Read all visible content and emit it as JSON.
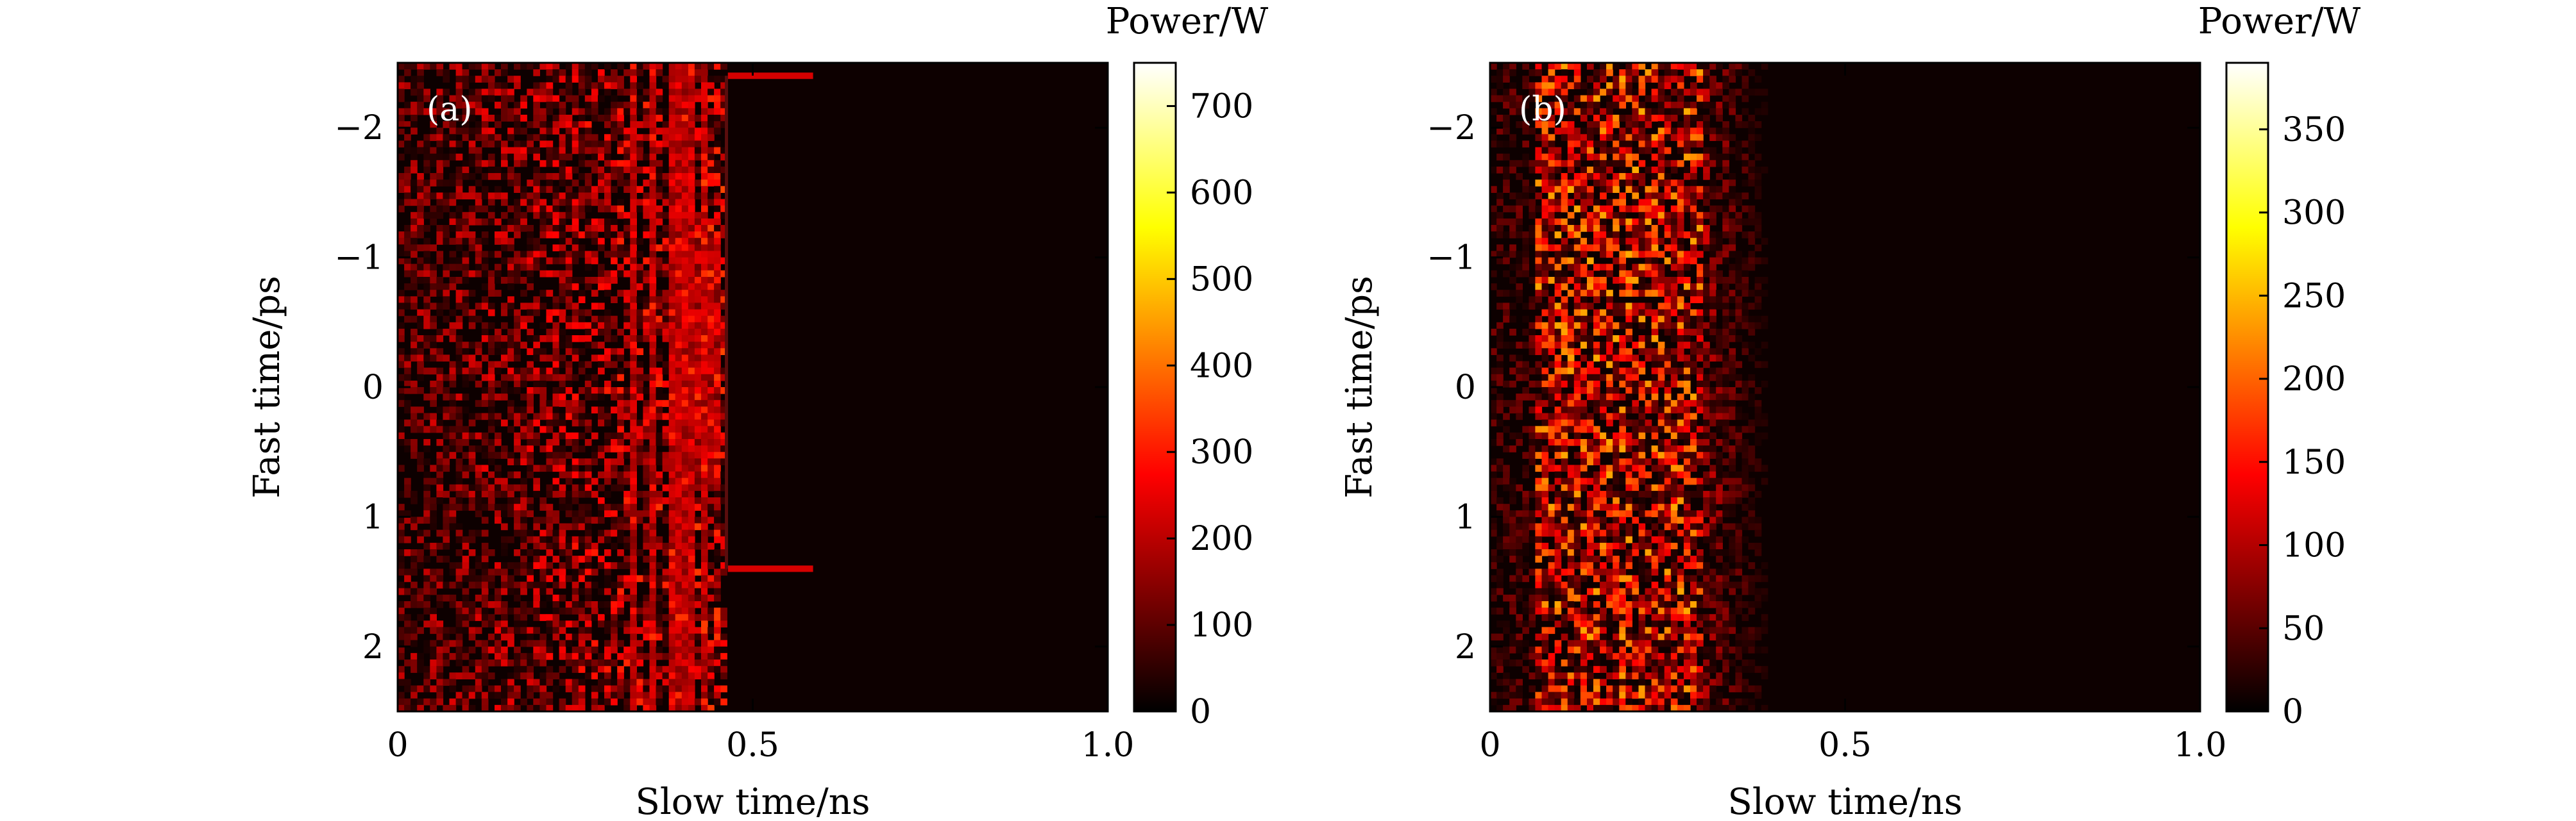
{
  "chart_data": [
    {
      "type": "heatmap",
      "panel_label": "(a)",
      "xlabel": "Slow time/ns",
      "ylabel": "Fast time/ps",
      "xlim": [
        0,
        1.0
      ],
      "ylim": [
        -2.5,
        2.5
      ],
      "x_ticks": [
        0,
        0.5,
        1.0
      ],
      "x_tick_labels": [
        "0",
        "0.5",
        "1.0"
      ],
      "y_ticks": [
        -2,
        -1,
        0,
        1,
        2
      ],
      "y_tick_labels": [
        "−2",
        "−1",
        "0",
        "1",
        "2"
      ],
      "colorbar": {
        "title": "Power/W",
        "range": [
          0,
          750
        ],
        "ticks": [
          0,
          100,
          200,
          300,
          400,
          500,
          600,
          700
        ],
        "tick_labels": [
          "0",
          "100",
          "200",
          "300",
          "400",
          "500",
          "600",
          "700"
        ],
        "colormap": "hot"
      },
      "description_values": {
        "noise_extent_ns": [
          0,
          0.46
        ],
        "filament_positions_ns": [
          0.33,
          0.36,
          0.39,
          0.41,
          0.43
        ],
        "dense_patch_ns": [
          0.42,
          0.455
        ],
        "dense_patch_ps": [
          -1.1,
          0.8
        ],
        "horizontal_lines": [
          {
            "fast_time_ps": -2.4,
            "slow_start_ns": 0.465,
            "slow_end_ns": 0.585,
            "power_w": 230
          },
          {
            "fast_time_ps": 1.4,
            "slow_start_ns": 0.465,
            "slow_end_ns": 0.585,
            "power_w": 230
          }
        ]
      }
    },
    {
      "type": "heatmap",
      "panel_label": "(b)",
      "xlabel": "Slow time/ns",
      "ylabel": "Fast time/ps",
      "xlim": [
        0,
        1.0
      ],
      "ylim": [
        -2.5,
        2.5
      ],
      "x_ticks": [
        0,
        0.5,
        1.0
      ],
      "x_tick_labels": [
        "0",
        "0.5",
        "1.0"
      ],
      "y_ticks": [
        -2,
        -1,
        0,
        1,
        2
      ],
      "y_tick_labels": [
        "−2",
        "−1",
        "0",
        "1",
        "2"
      ],
      "colorbar": {
        "title": "Power/W",
        "range": [
          0,
          390
        ],
        "ticks": [
          0,
          50,
          100,
          150,
          200,
          250,
          300,
          350
        ],
        "tick_labels": [
          "0",
          "50",
          "100",
          "150",
          "200",
          "250",
          "300",
          "350"
        ],
        "colormap": "hot"
      },
      "description_values": {
        "bright_band_ns": [
          0.06,
          0.3
        ],
        "fade_out_ns": [
          0.3,
          0.4
        ],
        "dim_tail_ns": [
          0.4,
          1.0
        ]
      }
    }
  ]
}
